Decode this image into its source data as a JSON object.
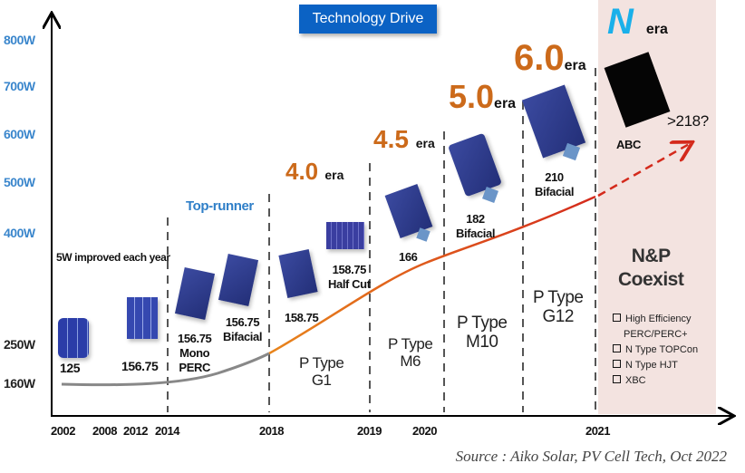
{
  "title": "Technology Drive",
  "y_axis_labels": [
    "800W",
    "700W",
    "600W",
    "500W",
    "400W",
    "250W",
    "160W"
  ],
  "x_axis_labels": [
    "2002",
    "2008",
    "2012",
    "2014",
    "2018",
    "2019",
    "2020",
    "2021"
  ],
  "annotations": {
    "improved": "5W improved each year",
    "top_runner": "Top-runner",
    "era_word": "era",
    "era_40": "4.0",
    "era_45": "4.5",
    "era_50": "5.0",
    "era_60": "6.0",
    "n_era": "N",
    "future": ">218?"
  },
  "cells": {
    "c125": "125",
    "c15675": "156.75",
    "mono_perc": [
      "156.75",
      "Mono",
      "PERC"
    ],
    "bifacial_15675": [
      "156.75",
      "Bifacial"
    ],
    "c15875": "158.75",
    "half_cut": [
      "158.75",
      "Half Cut"
    ],
    "c166": "166",
    "c182": [
      "182",
      "Bifacial"
    ],
    "c210": [
      "210",
      "Bifacial"
    ],
    "abc": "ABC"
  },
  "periods": {
    "g1": [
      "P Type",
      "G1"
    ],
    "m6": [
      "P Type",
      "M6"
    ],
    "m10": [
      "P Type",
      "M10"
    ],
    "g12": [
      "P Type",
      "G12"
    ],
    "coexist": [
      "N&P",
      "Coexist"
    ]
  },
  "legend": [
    "High Efficiency",
    "PERC/PERC+",
    "N Type TOPCon",
    "N Type HJT",
    "XBC"
  ],
  "source": "Source : Aiko Solar, PV Cell Tech, Oct 2022",
  "colors": {
    "title_bg": "#0b62c4",
    "era_orange": "#cc6a1a",
    "y_label": "#3a86cc",
    "n_zone": "#f3e3e0",
    "trend_red": "#d42a1c"
  }
}
